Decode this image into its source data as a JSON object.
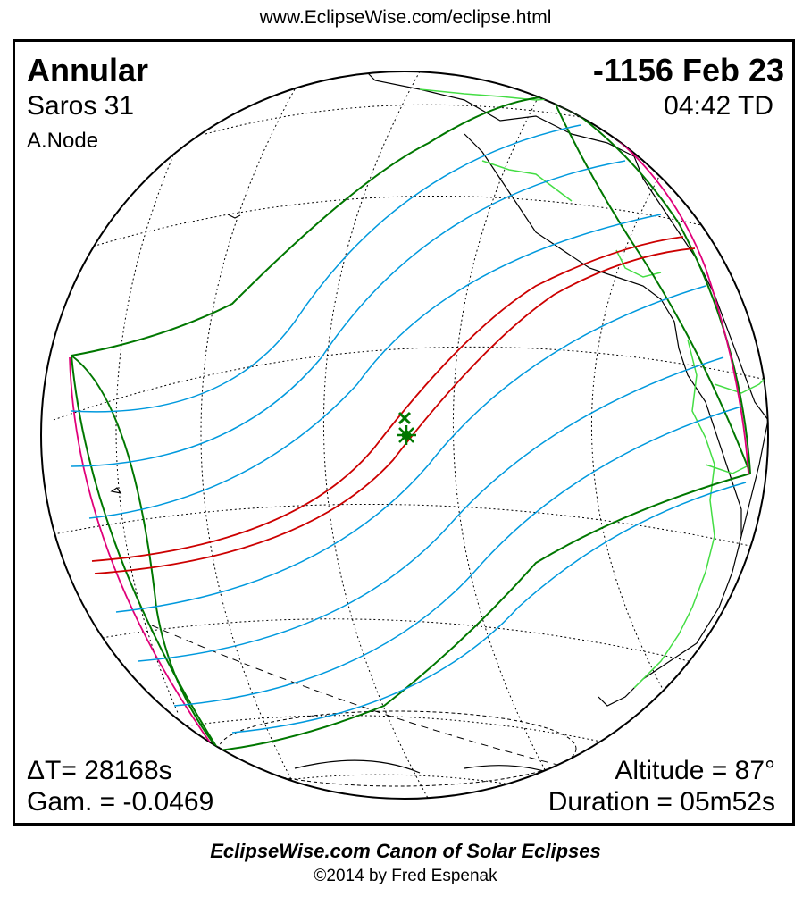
{
  "header": {
    "url": "www.EclipseWise.com/eclipse.html"
  },
  "eclipse": {
    "type": "Annular",
    "date": "-1156 Feb 23",
    "saros": "Saros  31",
    "time": "04:42 TD",
    "node": "A.Node",
    "delta_t": "ΔT=  28168s",
    "gamma": "Gam. = -0.0469",
    "altitude": "Altitude = 87°",
    "duration": "Duration = 05m52s"
  },
  "footer": {
    "title": "EclipseWise.com Canon of Solar Eclipses",
    "copyright": "©2014 by Fred Espenak"
  },
  "colors": {
    "central_path": "#cc0000",
    "penumbral_lines": "#0099dd",
    "outer_limits": "#007700",
    "rise_set": "#e0007a",
    "borders": "#44dd44",
    "grid": "#000000"
  },
  "icons": {
    "greatest_eclipse": "asterisk-marker-icon",
    "greatest_duration": "x-marker-icon"
  }
}
